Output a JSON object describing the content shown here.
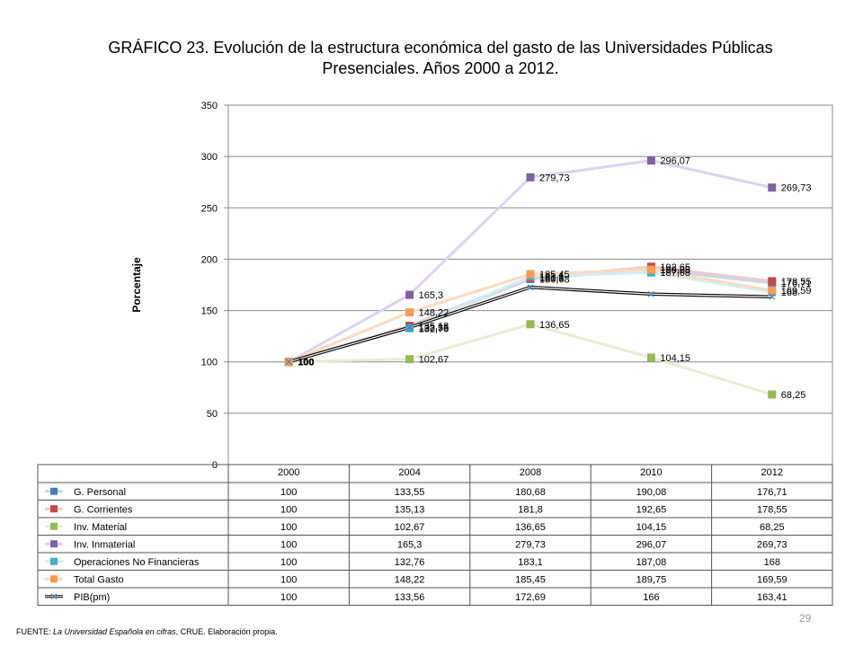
{
  "title_line1": "GRÁFICO 23. Evolución de la estructura económica del gasto de las Universidades Públicas",
  "title_line2": "Presenciales. Años 2000 a 2012.",
  "source_prefix": "FUENTE: ",
  "source_italic": "La Universidad Española en cifras",
  "source_suffix": ", CRUE. Elaboración propia.",
  "page_number": "29",
  "chart_data": {
    "type": "line",
    "ylabel": "Porcentaje",
    "xlabel": "",
    "ylim": [
      0,
      350
    ],
    "yticks": [
      "0",
      "50",
      "100",
      "150",
      "200",
      "250",
      "300",
      "350"
    ],
    "categories": [
      "2000",
      "2004",
      "2008",
      "2010",
      "2012"
    ],
    "grid": true,
    "legend": "data-table-below",
    "series": [
      {
        "name": "G. Personal",
        "values": [
          100,
          133.55,
          180.68,
          190.08,
          176.71
        ],
        "value_labels": [
          "100",
          "133,55",
          "180,68",
          "190,08",
          "176,71"
        ],
        "table_labels": [
          "100",
          "133,55",
          "180,68",
          "190,08",
          "176,71"
        ],
        "color": "#4a7eba",
        "line_color": "#c6d7ec",
        "marker": "square"
      },
      {
        "name": "G. Corrientes",
        "values": [
          100,
          135.13,
          181.8,
          192.65,
          178.55
        ],
        "value_labels": [
          "100",
          "135,13",
          "181,8",
          "192,65",
          "178,55"
        ],
        "table_labels": [
          "100",
          "135,13",
          "181,8",
          "192,65",
          "178,55"
        ],
        "color": "#be4b48",
        "line_color": "#efcbca",
        "marker": "square"
      },
      {
        "name": "Inv. Material",
        "values": [
          100,
          102.67,
          136.65,
          104.15,
          68.25
        ],
        "value_labels": [
          "100",
          "102,67",
          "136,65",
          "104,15",
          "68,25"
        ],
        "table_labels": [
          "100",
          "102,67",
          "136,65",
          "104,15",
          "68,25"
        ],
        "color": "#98b954",
        "line_color": "#e5eed2",
        "marker": "square"
      },
      {
        "name": "Inv. Inmaterial",
        "values": [
          100,
          165.3,
          279.73,
          296.07,
          269.73
        ],
        "value_labels": [
          "100",
          "165,3",
          "279,73",
          "296,07",
          "269,73"
        ],
        "table_labels": [
          "100",
          "165,3",
          "279,73",
          "296,07",
          "269,73"
        ],
        "color": "#7d60a0",
        "line_color": "#dcd3ec",
        "marker": "square"
      },
      {
        "name": "Operaciones No Financieras",
        "values": [
          100,
          132.76,
          183.1,
          187.08,
          168
        ],
        "value_labels": [
          "100",
          "132,76",
          "183,1",
          "187,08",
          "168"
        ],
        "table_labels": [
          "100",
          "132,76",
          "183,1",
          "187,08",
          "168"
        ],
        "color": "#46aac5",
        "line_color": "#d2edf4",
        "marker": "square"
      },
      {
        "name": "Total Gasto",
        "values": [
          100,
          148.22,
          185.45,
          189.75,
          169.59
        ],
        "value_labels": [
          "100",
          "148,22",
          "185,45",
          "189,75",
          "169,59"
        ],
        "table_labels": [
          "100",
          "148,22",
          "185,45",
          "189,75",
          "169,59"
        ],
        "color": "#f59d56",
        "line_color": "#fbd9c0",
        "marker": "square"
      },
      {
        "name": "PIB(pm)",
        "values": [
          100,
          133.56,
          172.69,
          166,
          163.41
        ],
        "value_labels": [
          "100",
          "",
          "",
          "",
          ""
        ],
        "table_labels": [
          "100",
          "133,56",
          "172,69",
          "166",
          "163,41"
        ],
        "color": "#000000",
        "line_color": "#000000",
        "marker": "x"
      }
    ]
  }
}
